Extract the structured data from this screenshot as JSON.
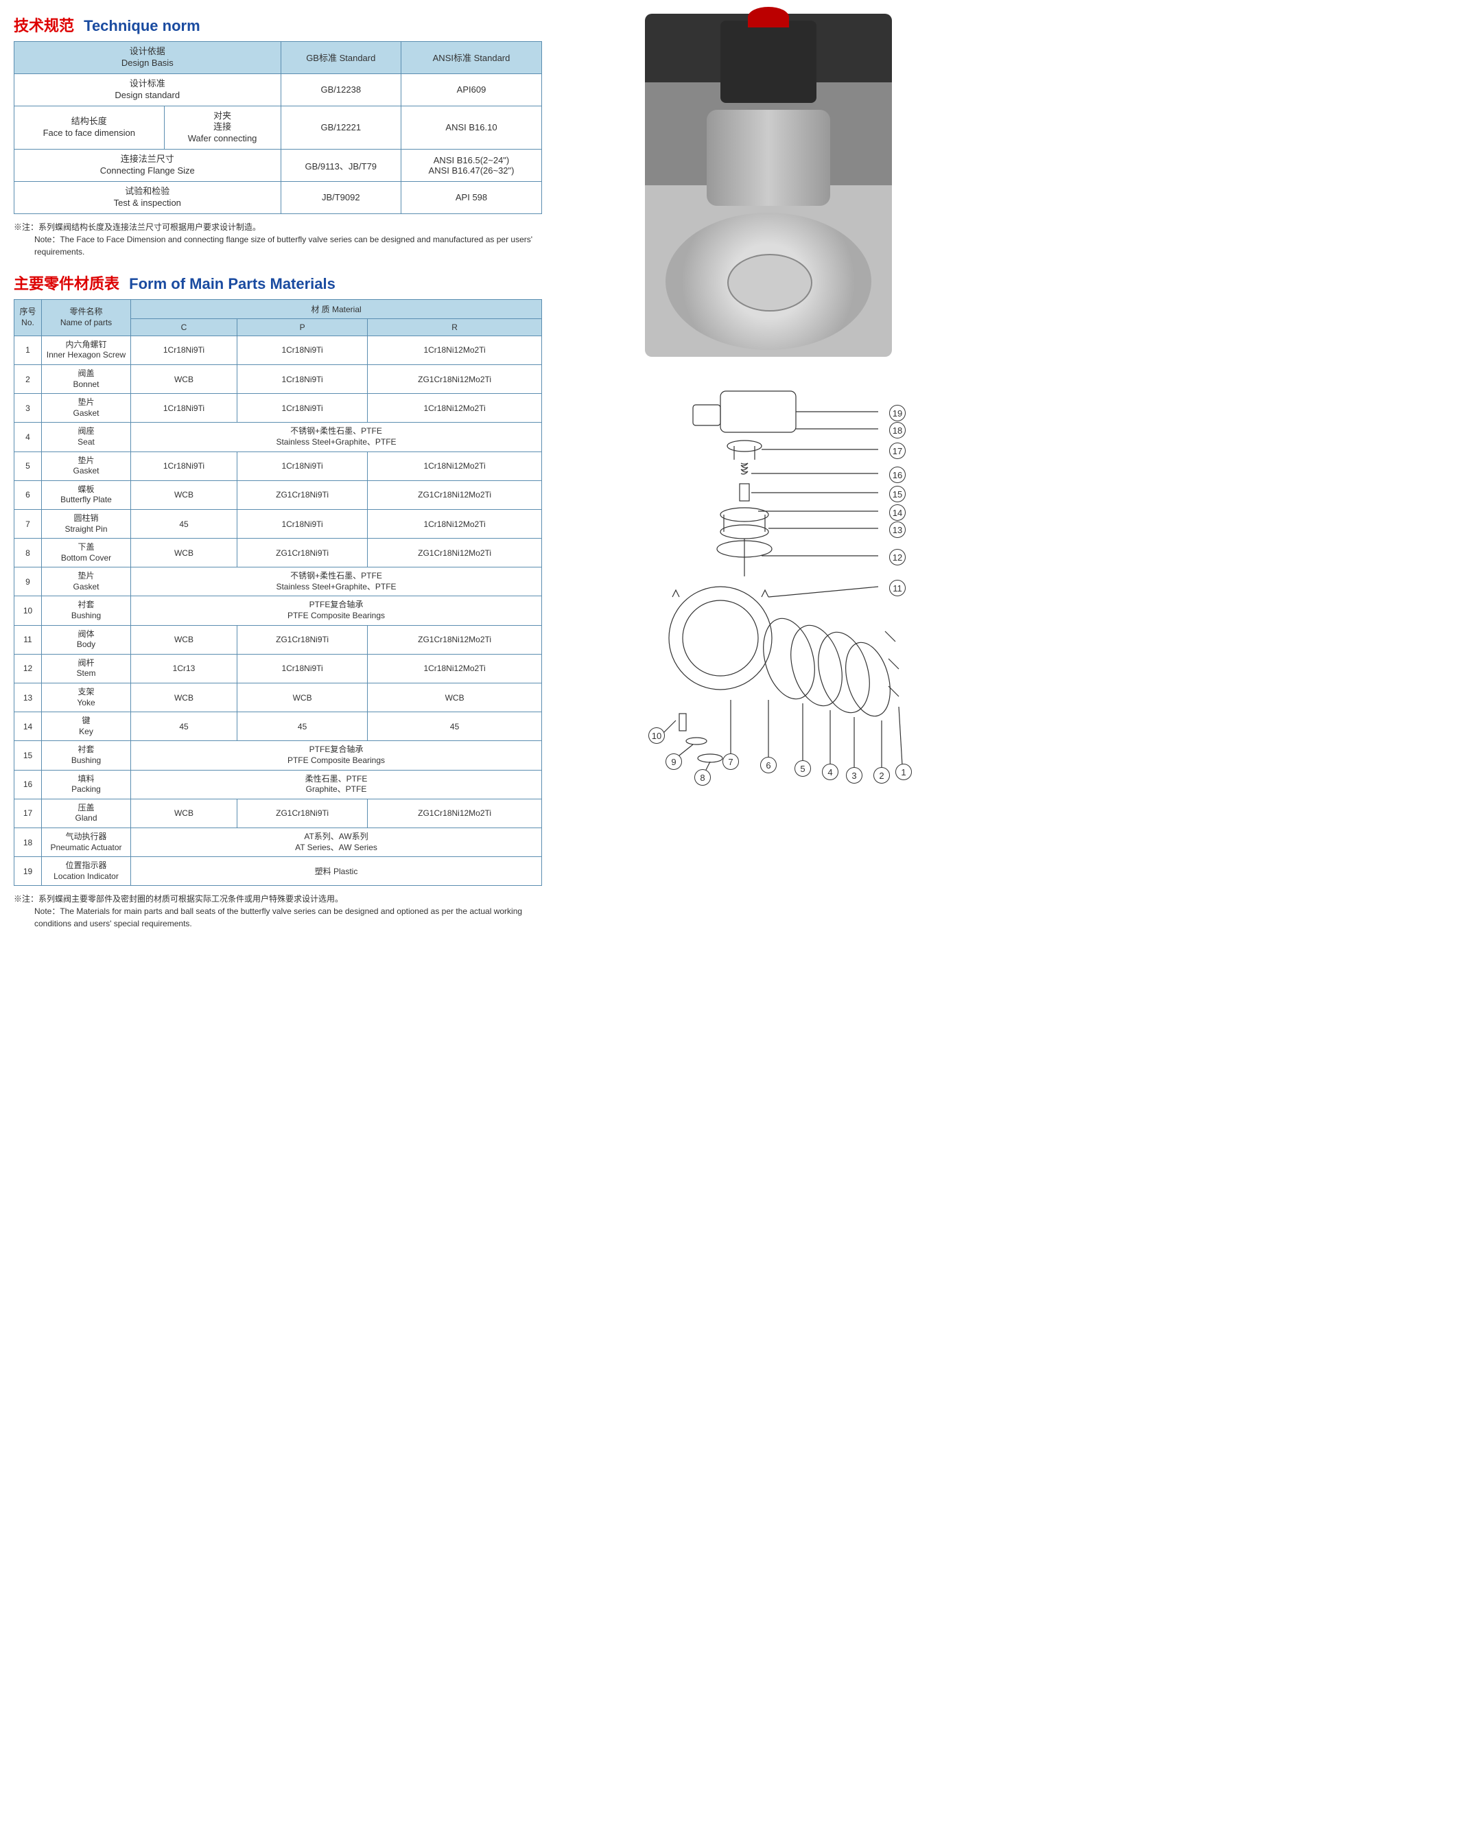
{
  "heading1_cn": "技术规范",
  "heading1_en": "Technique norm",
  "heading2_cn": "主要零件材质表",
  "heading2_en": "Form of Main Parts Materials",
  "table1": {
    "h1_cn": "设计依据",
    "h1_en": "Design Basis",
    "h2_cn": "GB标准 Standard",
    "h3_cn": "ANSI标准 Standard",
    "r1_cn": "设计标准",
    "r1_en": "Design standard",
    "r1_c2": "GB/12238",
    "r1_c3": "API609",
    "r2a_cn": "结构长度",
    "r2a_en": "Face to face dimension",
    "r2b_cn": "对夹\n连接",
    "r2b_en": "Wafer connecting",
    "r2_c2": "GB/12221",
    "r2_c3": "ANSI B16.10",
    "r3_cn": "连接法兰尺寸",
    "r3_en": "Connecting Flange Size",
    "r3_c2": "GB/9113、JB/T79",
    "r3_c3a": "ANSI B16.5(2~24\")",
    "r3_c3b": "ANSI B16.47(26~32\")",
    "r4_cn": "试验和检验",
    "r4_en": "Test & inspection",
    "r4_c2": "JB/T9092",
    "r4_c3": "API 598"
  },
  "note1_cn": "※注：系列蝶阀结构长度及连接法兰尺寸可根据用户要求设计制造。",
  "note1_en": "Note：The Face to Face Dimension  and connecting flange size of butterfly valve series can be designed and manufactured as per users' requirements.",
  "table2_headers": {
    "h1_cn": "序号",
    "h1_en": "No.",
    "h2_cn": "零件名称",
    "h2_en": "Name of parts",
    "h3_cn": "材 质 Material",
    "c1": "C",
    "c2": "P",
    "c3": "R"
  },
  "parts": [
    {
      "no": "1",
      "cn": "内六角螺钉",
      "en": "Inner Hexagon Screw",
      "c": "1Cr18Ni9Ti",
      "p": "1Cr18Ni9Ti",
      "r": "1Cr18Ni12Mo2Ti"
    },
    {
      "no": "2",
      "cn": "阀盖",
      "en": "Bonnet",
      "c": "WCB",
      "p": "1Cr18Ni9Ti",
      "r": "ZG1Cr18Ni12Mo2Ti"
    },
    {
      "no": "3",
      "cn": "垫片",
      "en": "Gasket",
      "c": "1Cr18Ni9Ti",
      "p": "1Cr18Ni9Ti",
      "r": "1Cr18Ni12Mo2Ti"
    },
    {
      "no": "4",
      "cn": "阀座",
      "en": "Seat",
      "merged_cn": "不锈钢+柔性石墨、PTFE",
      "merged_en": "Stainless Steel+Graphite、PTFE"
    },
    {
      "no": "5",
      "cn": "垫片",
      "en": "Gasket",
      "c": "1Cr18Ni9Ti",
      "p": "1Cr18Ni9Ti",
      "r": "1Cr18Ni12Mo2Ti"
    },
    {
      "no": "6",
      "cn": "蝶板",
      "en": "Butterfly Plate",
      "c": "WCB",
      "p": "ZG1Cr18Ni9Ti",
      "r": "ZG1Cr18Ni12Mo2Ti"
    },
    {
      "no": "7",
      "cn": "圆柱销",
      "en": "Straight Pin",
      "c": "45",
      "p": "1Cr18Ni9Ti",
      "r": "1Cr18Ni12Mo2Ti"
    },
    {
      "no": "8",
      "cn": "下盖",
      "en": "Bottom Cover",
      "c": "WCB",
      "p": "ZG1Cr18Ni9Ti",
      "r": "ZG1Cr18Ni12Mo2Ti"
    },
    {
      "no": "9",
      "cn": "垫片",
      "en": "Gasket",
      "merged_cn": "不锈钢+柔性石墨、PTFE",
      "merged_en": "Stainless Steel+Graphite、PTFE"
    },
    {
      "no": "10",
      "cn": "衬套",
      "en": "Bushing",
      "merged_cn": "PTFE复合轴承",
      "merged_en": "PTFE Composite Bearings"
    },
    {
      "no": "11",
      "cn": "阀体",
      "en": "Body",
      "c": "WCB",
      "p": "ZG1Cr18Ni9Ti",
      "r": "ZG1Cr18Ni12Mo2Ti"
    },
    {
      "no": "12",
      "cn": "阀杆",
      "en": "Stem",
      "c": "1Cr13",
      "p": "1Cr18Ni9Ti",
      "r": "1Cr18Ni12Mo2Ti"
    },
    {
      "no": "13",
      "cn": "支架",
      "en": "Yoke",
      "c": "WCB",
      "p": "WCB",
      "r": "WCB"
    },
    {
      "no": "14",
      "cn": "键",
      "en": "Key",
      "c": "45",
      "p": "45",
      "r": "45"
    },
    {
      "no": "15",
      "cn": "衬套",
      "en": "Bushing",
      "merged_cn": "PTFE复合轴承",
      "merged_en": "PTFE Composite Bearings"
    },
    {
      "no": "16",
      "cn": "填料",
      "en": "Packing",
      "merged_cn": "柔性石墨、PTFE",
      "merged_en": "Graphite、PTFE"
    },
    {
      "no": "17",
      "cn": "压盖",
      "en": "Gland",
      "c": "WCB",
      "p": "ZG1Cr18Ni9Ti",
      "r": "ZG1Cr18Ni12Mo2Ti"
    },
    {
      "no": "18",
      "cn": "气动执行器",
      "en": "Pneumatic Actuator",
      "merged_cn": "AT系列、AW系列",
      "merged_en": "AT Series、AW Series"
    },
    {
      "no": "19",
      "cn": "位置指示器",
      "en": "Location Indicator",
      "merged_cn": "塑料 Plastic",
      "merged_en": ""
    }
  ],
  "note2_cn": "※注：系列蝶阀主要零部件及密封圈的材质可根据实际工况条件或用户特殊要求设计选用。",
  "note2_en": "Note：The Materials for main parts and ball seats of the butterfly valve series can be designed and optioned as per the actual working conditions and users' special requirements.",
  "callouts": [
    "1",
    "2",
    "3",
    "4",
    "5",
    "6",
    "7",
    "8",
    "9",
    "10",
    "11",
    "12",
    "13",
    "14",
    "15",
    "16",
    "17",
    "18",
    "19"
  ]
}
